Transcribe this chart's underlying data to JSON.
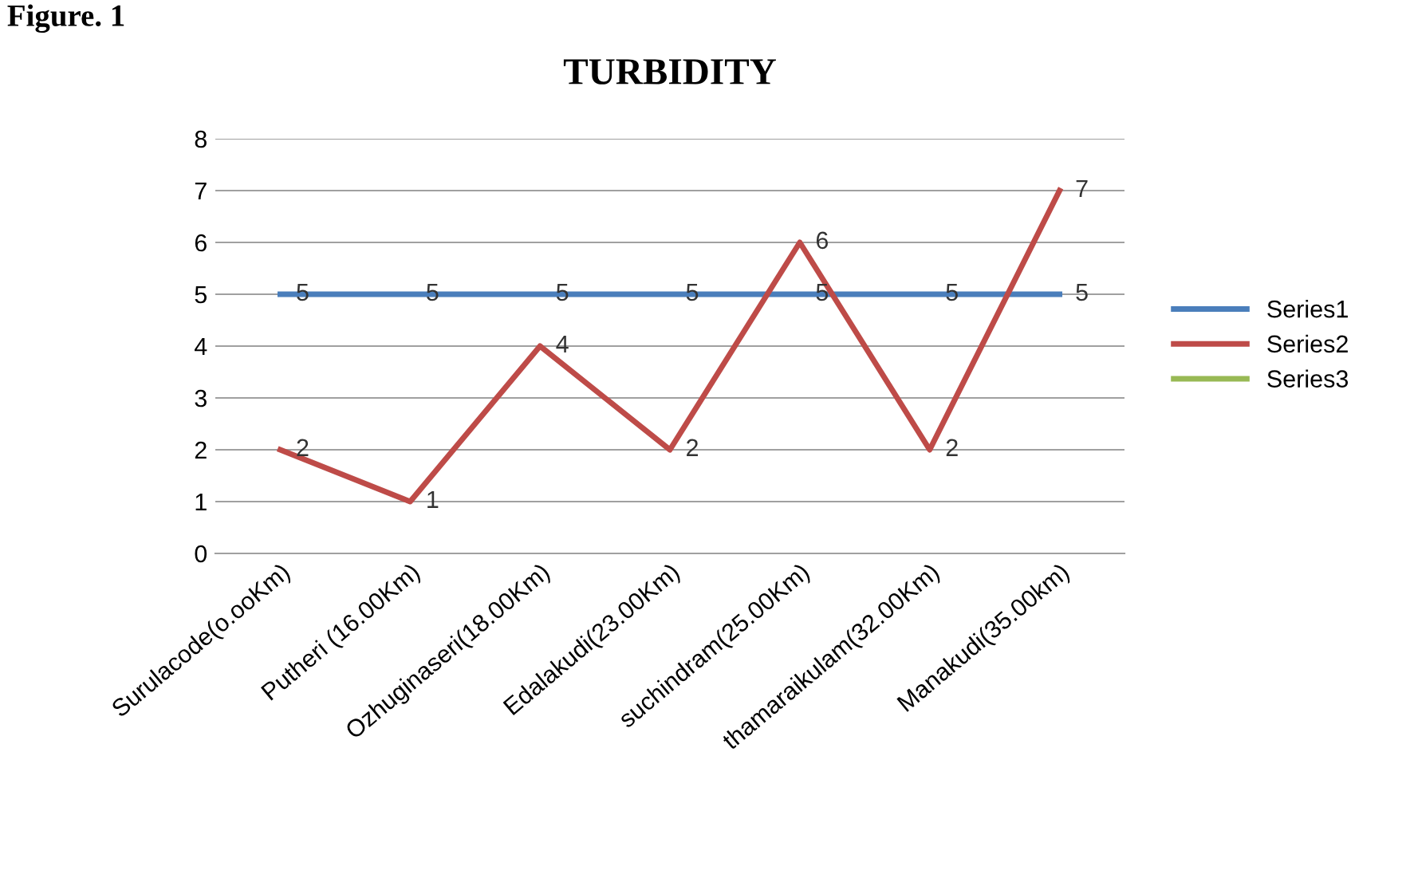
{
  "chart_data": {
    "type": "line",
    "title": "TURBIDITY",
    "annotations": [
      "Figure. 1"
    ],
    "categories": [
      "Surulacode(o.ooKm)",
      "Putheri (16.00Km)",
      "Ozhuginaseri(18.00Km)",
      "Edalakudi(23.00Km)",
      "suchindram(25.00Km)",
      "thamaraikulam(32.00Km)",
      "Manakudi(35.00km)"
    ],
    "series": [
      {
        "name": "Series1",
        "color": "#4a7ebb",
        "values": [
          5,
          5,
          5,
          5,
          5,
          5,
          5
        ]
      },
      {
        "name": "Series2",
        "color": "#be4b48",
        "values": [
          2,
          1,
          4,
          2,
          6,
          2,
          7
        ]
      },
      {
        "name": "Series3",
        "color": "#98b954",
        "values": [
          null,
          null,
          null,
          null,
          null,
          null,
          null
        ]
      }
    ],
    "ylim": [
      0,
      8
    ],
    "yticks": [
      0,
      1,
      2,
      3,
      4,
      5,
      6,
      7,
      8
    ],
    "grid": "y",
    "legend": "right",
    "data_labels": true,
    "marker": "none",
    "line_style": "solid"
  }
}
